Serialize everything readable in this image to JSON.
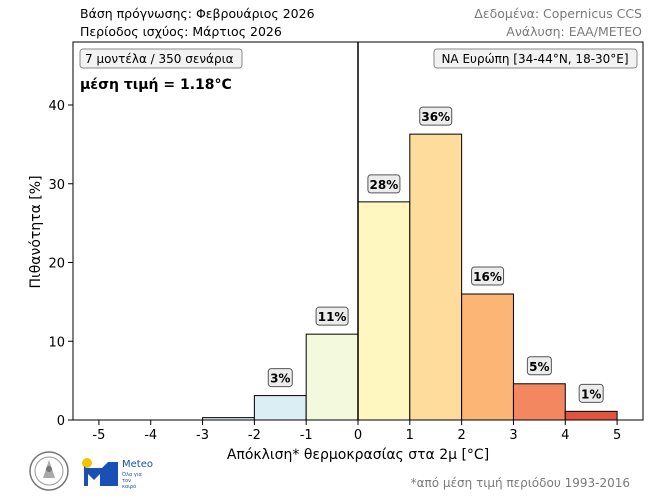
{
  "header": {
    "base_forecast": "Βάση πρόγνωσης: Φεβρουάριος 2026",
    "valid_period": "Περίοδος ισχύος: Μάρτιος 2026",
    "data_source": "Δεδομένα: Copernicus CCS",
    "analysis": "Ανάλυση: ΕΑΑ/ΜΕΤΕΟ"
  },
  "annotations": {
    "models": "7 μοντέλα / 350 σενάρια",
    "mean": "μέση τιμή = 1.18°C",
    "region": "ΝΑ Ευρώπη [34-44°N, 18-30°E]"
  },
  "footnote": "*από μέση τιμή περιόδου 1993-2016",
  "logos": {
    "meteo_text": "Meteo",
    "meteo_sub": "Όλα για τον καιρό"
  },
  "colors": {
    "bars": [
      "#ffffff",
      "#ffffff",
      "#dbeef4",
      "#dbeef4",
      "#f2f9dc",
      "#fff7bf",
      "#fedc9b",
      "#fcb575",
      "#f3875f",
      "#e0543f"
    ],
    "edge": "#000000",
    "zero_line": "#000000"
  },
  "chart_data": {
    "type": "bar",
    "xlabel": "Απόκλιση* θερμοκρασίας στα 2μ [°C]",
    "ylabel": "Πιθανότητα [%]",
    "bin_edges": [
      -5,
      -4,
      -3,
      -2,
      -1,
      0,
      1,
      2,
      3,
      4,
      5
    ],
    "values": [
      0,
      0,
      0.3,
      3.1,
      10.9,
      27.7,
      36.3,
      16.0,
      4.6,
      1.1
    ],
    "labels": [
      "",
      "",
      "",
      "3%",
      "11%",
      "28%",
      "36%",
      "16%",
      "5%",
      "1%"
    ],
    "xlim": [
      -5.5,
      5.5
    ],
    "ylim": [
      0,
      48
    ],
    "xticks": [
      -5,
      -4,
      -3,
      -2,
      -1,
      0,
      1,
      2,
      3,
      4,
      5
    ],
    "yticks": [
      0,
      10,
      20,
      30,
      40
    ],
    "mean": 1.18,
    "grid": false
  }
}
